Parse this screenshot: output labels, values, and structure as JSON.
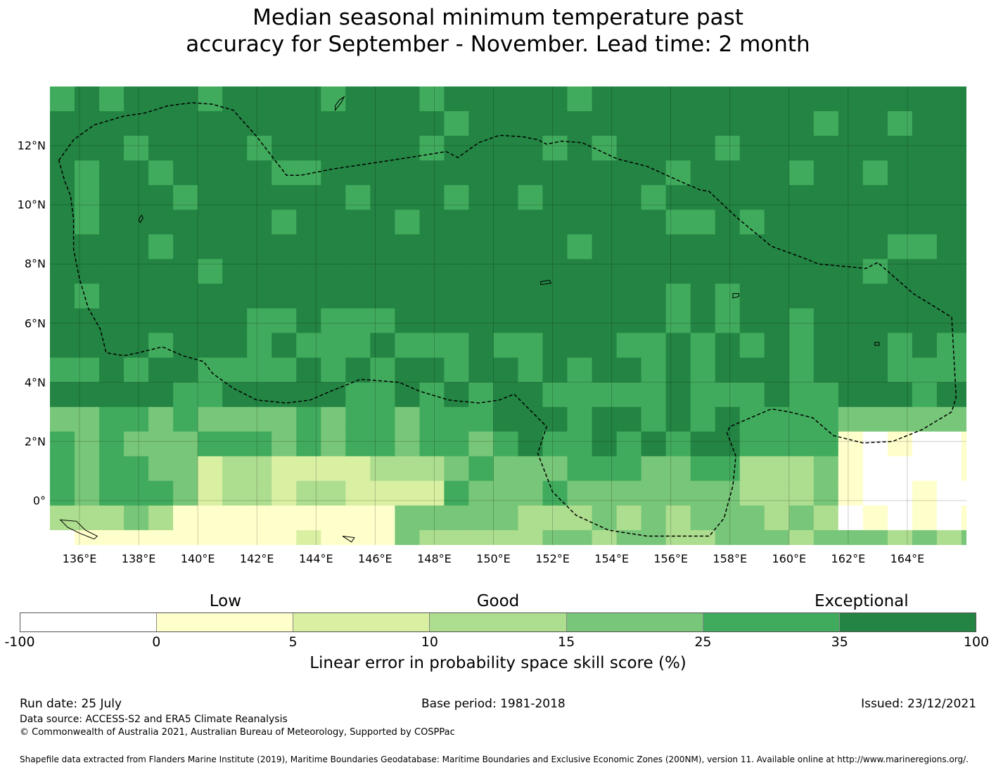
{
  "title_line1": "Median seasonal minimum temperature past",
  "title_line2": "accuracy for September - November. Lead time: 2 month",
  "map": {
    "lon_range": [
      135,
      166
    ],
    "lat_range": [
      -1.5,
      14
    ],
    "lat_ticks": [
      {
        "value": 12,
        "label": "12°N"
      },
      {
        "value": 10,
        "label": "10°N"
      },
      {
        "value": 8,
        "label": "8°N"
      },
      {
        "value": 6,
        "label": "6°N"
      },
      {
        "value": 4,
        "label": "4°N"
      },
      {
        "value": 2,
        "label": "2°N"
      },
      {
        "value": 0,
        "label": "0°"
      }
    ],
    "lon_ticks": [
      {
        "value": 136,
        "label": "136°E"
      },
      {
        "value": 138,
        "label": "138°E"
      },
      {
        "value": 140,
        "label": "140°E"
      },
      {
        "value": 142,
        "label": "142°E"
      },
      {
        "value": 144,
        "label": "144°E"
      },
      {
        "value": 146,
        "label": "146°E"
      },
      {
        "value": 148,
        "label": "148°E"
      },
      {
        "value": 150,
        "label": "150°E"
      },
      {
        "value": 152,
        "label": "152°E"
      },
      {
        "value": 154,
        "label": "154°E"
      },
      {
        "value": 156,
        "label": "156°E"
      },
      {
        "value": 158,
        "label": "158°E"
      },
      {
        "value": 160,
        "label": "160°E"
      },
      {
        "value": 162,
        "label": "162°E"
      },
      {
        "value": 164,
        "label": "164°E"
      }
    ],
    "eez_boundary": [
      [
        135.3,
        11.5
      ],
      [
        135.8,
        12.2
      ],
      [
        136.5,
        12.7
      ],
      [
        137.5,
        13.0
      ],
      [
        138.2,
        13.1
      ],
      [
        139,
        13.35
      ],
      [
        139.8,
        13.45
      ],
      [
        140.5,
        13.4
      ],
      [
        141.2,
        13.2
      ],
      [
        142,
        12.3
      ],
      [
        143,
        11.0
      ],
      [
        143.5,
        11.0
      ],
      [
        144.5,
        11.2
      ],
      [
        146.5,
        11.5
      ],
      [
        147.8,
        11.7
      ],
      [
        148.4,
        11.8
      ],
      [
        148.8,
        11.6
      ],
      [
        149.5,
        12.1
      ],
      [
        150.2,
        12.35
      ],
      [
        151,
        12.3
      ],
      [
        151.5,
        12.2
      ],
      [
        151.8,
        12.05
      ],
      [
        152.3,
        12.15
      ],
      [
        153.0,
        12.1
      ],
      [
        154.2,
        11.55
      ],
      [
        155.2,
        11.3
      ],
      [
        156.3,
        10.8
      ],
      [
        157.0,
        10.5
      ],
      [
        157.3,
        10.45
      ],
      [
        158.2,
        9.6
      ],
      [
        159.4,
        8.6
      ],
      [
        160.5,
        8.2
      ],
      [
        161.0,
        8.0
      ],
      [
        162.6,
        7.85
      ],
      [
        163.0,
        8.05
      ],
      [
        164.2,
        7.0
      ],
      [
        165.5,
        6.2
      ],
      [
        165.65,
        3.5
      ],
      [
        165.5,
        3.0
      ],
      [
        164.5,
        2.4
      ],
      [
        163.5,
        2.0
      ],
      [
        162.5,
        1.95
      ],
      [
        161.5,
        2.2
      ],
      [
        160.8,
        2.8
      ],
      [
        160.0,
        3.0
      ],
      [
        159.4,
        3.1
      ],
      [
        158.0,
        2.5
      ],
      [
        157.9,
        2.3
      ],
      [
        158.2,
        1.5
      ],
      [
        158.1,
        0.5
      ],
      [
        157.8,
        -0.6
      ],
      [
        157.3,
        -1.2
      ],
      [
        156.5,
        -1.2
      ],
      [
        155.2,
        -1.2
      ],
      [
        153.9,
        -1.0
      ],
      [
        152.8,
        -0.5
      ],
      [
        152.0,
        0.3
      ],
      [
        151.5,
        1.6
      ],
      [
        151.8,
        2.5
      ],
      [
        151.5,
        2.8
      ],
      [
        151.0,
        3.3
      ],
      [
        150.7,
        3.6
      ],
      [
        150.2,
        3.4
      ],
      [
        149.5,
        3.3
      ],
      [
        148.5,
        3.4
      ],
      [
        147.5,
        3.7
      ],
      [
        146.8,
        4.0
      ],
      [
        145.5,
        4.1
      ],
      [
        145.0,
        3.9
      ],
      [
        144.5,
        3.7
      ],
      [
        143.8,
        3.4
      ],
      [
        143.0,
        3.3
      ],
      [
        142.0,
        3.4
      ],
      [
        141.2,
        3.8
      ],
      [
        140.5,
        4.3
      ],
      [
        140.2,
        4.7
      ],
      [
        139.5,
        4.9
      ],
      [
        138.8,
        5.2
      ],
      [
        138.0,
        5.0
      ],
      [
        137.5,
        4.9
      ],
      [
        136.9,
        5.0
      ],
      [
        136.7,
        5.8
      ],
      [
        136.3,
        6.5
      ],
      [
        136.0,
        7.5
      ],
      [
        135.8,
        8.5
      ],
      [
        135.8,
        9.5
      ],
      [
        135.7,
        10.3
      ],
      [
        135.5,
        10.8
      ],
      [
        135.3,
        11.5
      ]
    ],
    "islands": [
      {
        "name": "guam",
        "points": [
          [
            144.65,
            13.2
          ],
          [
            144.85,
            13.45
          ],
          [
            144.95,
            13.65
          ],
          [
            144.8,
            13.55
          ],
          [
            144.65,
            13.35
          ]
        ]
      },
      {
        "name": "chuuk",
        "points": [
          [
            151.6,
            7.3
          ],
          [
            151.95,
            7.35
          ],
          [
            151.9,
            7.45
          ],
          [
            151.6,
            7.4
          ]
        ]
      },
      {
        "name": "pohnpei",
        "points": [
          [
            158.1,
            6.85
          ],
          [
            158.3,
            6.9
          ],
          [
            158.3,
            7.0
          ],
          [
            158.1,
            7.0
          ]
        ]
      },
      {
        "name": "kosrae",
        "points": [
          [
            162.9,
            5.25
          ],
          [
            163.05,
            5.25
          ],
          [
            163.05,
            5.35
          ],
          [
            162.9,
            5.35
          ]
        ]
      },
      {
        "name": "yap",
        "points": [
          [
            138.05,
            9.4
          ],
          [
            138.15,
            9.55
          ],
          [
            138.1,
            9.65
          ],
          [
            138.0,
            9.5
          ]
        ]
      },
      {
        "name": "new-guinea-coast",
        "points": [
          [
            135.35,
            -0.65
          ],
          [
            135.9,
            -0.7
          ],
          [
            136.2,
            -1.0
          ],
          [
            136.6,
            -1.2
          ],
          [
            136.5,
            -1.3
          ],
          [
            136.0,
            -1.1
          ],
          [
            135.6,
            -0.9
          ]
        ]
      },
      {
        "name": "manus-islets",
        "points": [
          [
            144.9,
            -1.2
          ],
          [
            145.3,
            -1.25
          ],
          [
            145.2,
            -1.4
          ]
        ]
      }
    ]
  },
  "colorbar": {
    "words": [
      {
        "text": "Low",
        "frac": 0.215
      },
      {
        "text": "Good",
        "frac": 0.5
      },
      {
        "text": "Exceptional",
        "frac": 0.88
      }
    ],
    "ticks": [
      "-100",
      "0",
      "5",
      "10",
      "15",
      "25",
      "35",
      "100"
    ],
    "colors": [
      "#ffffff",
      "#ffffcc",
      "#d9f0a3",
      "#addd8e",
      "#78c679",
      "#41ab5d",
      "#238443"
    ],
    "label": "Linear error in probability space skill score (%)"
  },
  "footer": {
    "run_date": "Run date: 25 July",
    "base_period": "Base period: 1981-2018",
    "issued": "Issued: 23/12/2021",
    "data_source": "Data source: ACCESS-S2 and ERA5 Climate Reanalysis",
    "copyright": "© Commonwealth of Australia 2021, Australian Bureau of Meteorology, Supported by COSPPac",
    "shapefile": "Shapefile data extracted from Flanders Marine Institute (2019), Maritime Boundaries Geodatabase: Maritime Boundaries and Exclusive Economic Zones (200NM), version 11. Available online at http://www.marineregions.org/."
  }
}
